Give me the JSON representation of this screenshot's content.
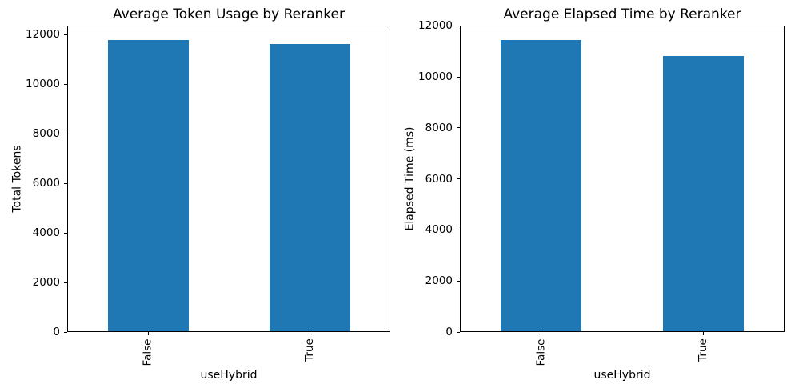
{
  "figure": {
    "background": "#ffffff"
  },
  "chart_data": [
    {
      "type": "bar",
      "title": "Average Token Usage by Reranker",
      "xlabel": "useHybrid",
      "ylabel": "Total Tokens",
      "categories": [
        "False",
        "True"
      ],
      "values": [
        11780,
        11640
      ],
      "ylim": [
        0,
        12370
      ],
      "yticks": [
        0,
        2000,
        4000,
        6000,
        8000,
        10000,
        12000
      ],
      "bar_color": "#1f77b4",
      "grid": false,
      "legend": "none",
      "xtick_rotation": 90
    },
    {
      "type": "bar",
      "title": "Average Elapsed Time by Reranker",
      "xlabel": "useHybrid",
      "ylabel": "Elapsed Time (ms)",
      "categories": [
        "False",
        "True"
      ],
      "values": [
        11430,
        10810
      ],
      "ylim": [
        0,
        12010
      ],
      "yticks": [
        0,
        2000,
        4000,
        6000,
        8000,
        10000,
        12000
      ],
      "bar_color": "#1f77b4",
      "grid": false,
      "legend": "none",
      "xtick_rotation": 90
    }
  ]
}
